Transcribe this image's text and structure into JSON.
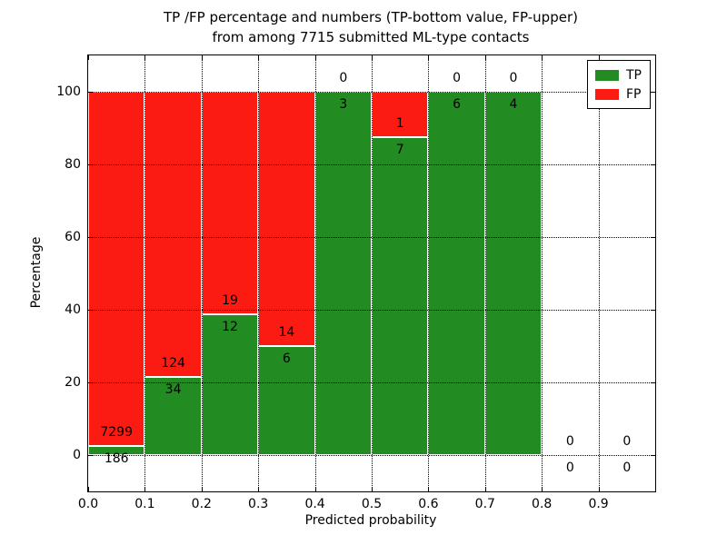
{
  "chart_data": {
    "type": "bar",
    "stacked": true,
    "title_lines": [
      "TP /FP percentage and numbers (TP-bottom value, FP-upper)",
      "from among 7715 submitted ML-type contacts"
    ],
    "total_contacts_shown_in_title": 7715,
    "xlabel": "Predicted probability",
    "ylabel": "Percentage",
    "xlim": [
      0.0,
      1.0
    ],
    "ylim": [
      -10,
      110
    ],
    "xtick_labels": [
      "0.0",
      "0.1",
      "0.2",
      "0.3",
      "0.4",
      "0.5",
      "0.6",
      "0.7",
      "0.8",
      "0.9"
    ],
    "ytick_values": [
      0,
      20,
      40,
      60,
      80,
      100
    ],
    "grid": "dotted, black, drawn above bars",
    "categories": [
      "0.0-0.1",
      "0.1-0.2",
      "0.2-0.3",
      "0.3-0.4",
      "0.4-0.5",
      "0.5-0.6",
      "0.6-0.7",
      "0.7-0.8",
      "0.8-0.9",
      "0.9-1.0"
    ],
    "series": [
      {
        "name": "TP",
        "values": [
          186,
          34,
          12,
          6,
          3,
          7,
          6,
          4,
          0,
          0
        ]
      },
      {
        "name": "FP",
        "values": [
          7299,
          124,
          19,
          14,
          0,
          1,
          0,
          0,
          0,
          0
        ]
      }
    ],
    "tp_pct": [
      2.48,
      21.52,
      38.71,
      30.0,
      100.0,
      87.5,
      100.0,
      100.0,
      0.0,
      0.0
    ],
    "legend": {
      "position": "upper-right",
      "entries": [
        {
          "label": "TP",
          "color": "#228b22"
        },
        {
          "label": "FP",
          "color": "#fb1b13"
        }
      ]
    }
  },
  "colors": {
    "tp": "#228b22",
    "fp": "#fb1b13",
    "grid": "#000000",
    "frame": "#000000",
    "background": "#ffffff",
    "bar_edge": "#ffffff"
  }
}
